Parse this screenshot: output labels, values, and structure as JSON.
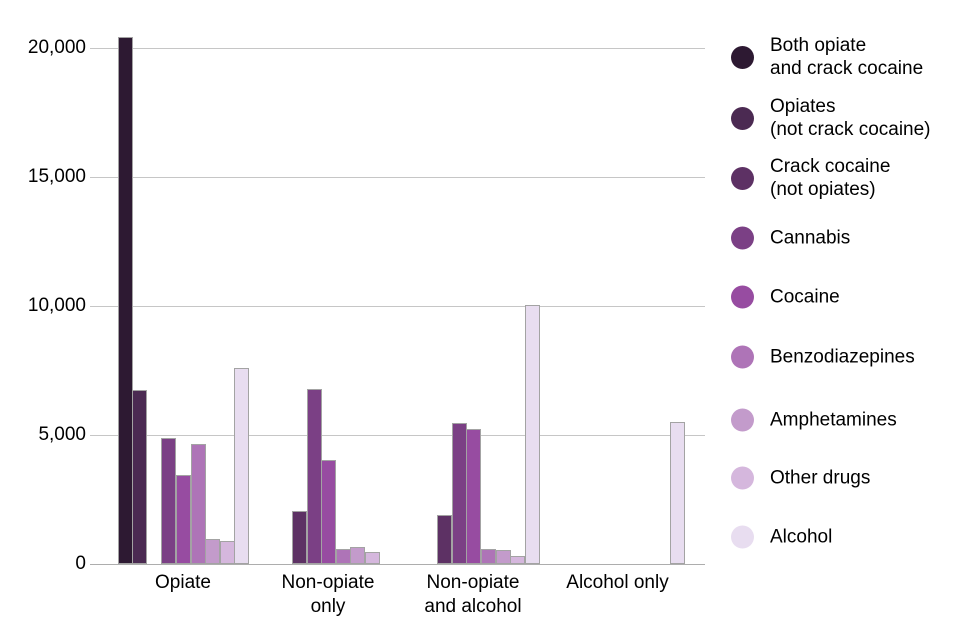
{
  "chart_data": {
    "type": "bar",
    "title": "",
    "xlabel": "",
    "ylabel": "",
    "grid": true,
    "legend_position": "right",
    "ylim": [
      0,
      20600
    ],
    "y_axis": {
      "tick_values": [
        0,
        5000,
        10000,
        15000,
        20000
      ],
      "tick_labels": [
        "0",
        "5,000",
        "10,000",
        "15,000",
        "20,000"
      ]
    },
    "categories": [
      "Opiate",
      "Non-opiate\nonly",
      "Non-opiate\nand alcohol",
      "Alcohol only"
    ],
    "series": [
      {
        "name": "Both opiate\nand crack cocaine",
        "color": "#2d1932",
        "values": [
          20450,
          0,
          0,
          0
        ]
      },
      {
        "name": "Opiates\n(not crack cocaine)",
        "color": "#4b2a52",
        "values": [
          6760,
          0,
          0,
          0
        ]
      },
      {
        "name": "Crack cocaine\n(not opiates)",
        "color": "#5d3164",
        "values": [
          0,
          2060,
          1930,
          0
        ]
      },
      {
        "name": "Cannabis",
        "color": "#7b4085",
        "values": [
          4900,
          6800,
          5460,
          0
        ]
      },
      {
        "name": "Cocaine",
        "color": "#974ca1",
        "values": [
          3480,
          4060,
          5240,
          0
        ]
      },
      {
        "name": "Benzodiazepines",
        "color": "#ae74b7",
        "values": [
          4680,
          580,
          600,
          0
        ]
      },
      {
        "name": "Amphetamines",
        "color": "#c39bcb",
        "values": [
          1000,
          660,
          540,
          0
        ]
      },
      {
        "name": "Other drugs",
        "color": "#d5b7dd",
        "values": [
          900,
          480,
          330,
          0
        ]
      },
      {
        "name": "Alcohol",
        "color": "#e8ddf0",
        "values": [
          7620,
          0,
          10050,
          5500
        ]
      }
    ]
  },
  "colors": {
    "background": "#ffffff",
    "gridline": "#c6c6c6",
    "axis_line": "#adadad",
    "bar_outline": "#a3a3a3",
    "text": "#000000"
  }
}
